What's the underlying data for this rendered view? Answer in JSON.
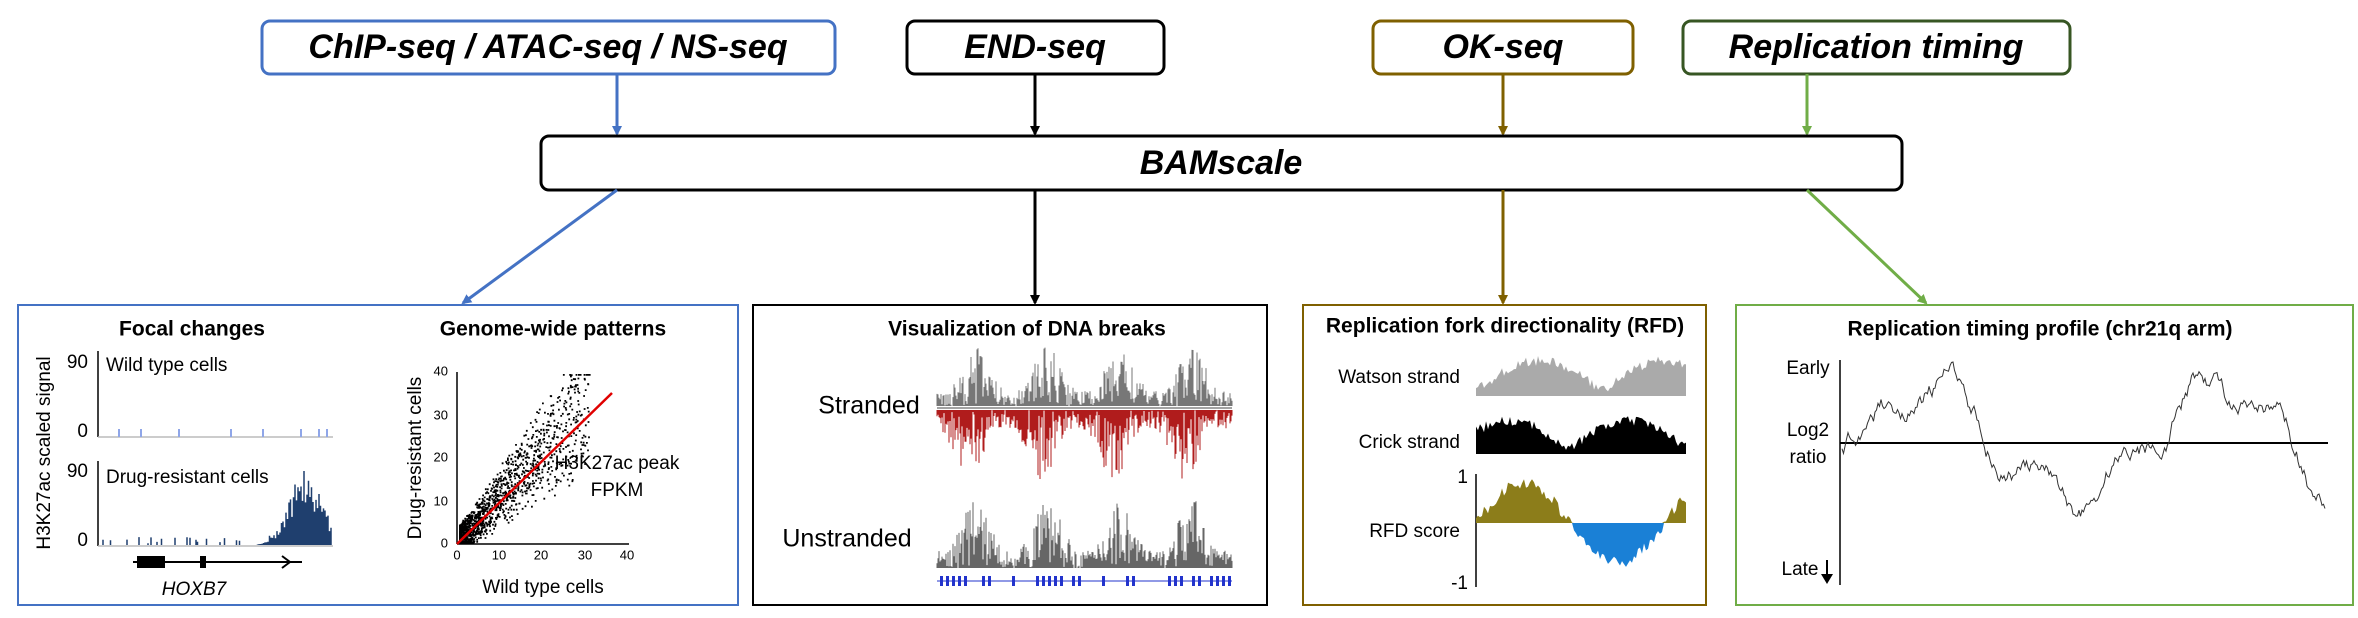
{
  "inputs": [
    {
      "label": "ChIP-seq / ATAC-seq / NS-seq"
    },
    {
      "label": "END-seq"
    },
    {
      "label": "OK-seq"
    },
    {
      "label": "Replication timing"
    }
  ],
  "tool": {
    "label": "BAMscale"
  },
  "panels": {
    "focal": {
      "title": "Focal changes",
      "y_label": "H3K27ac scaled signal",
      "tracks": [
        {
          "label": "Wild type cells",
          "max": "90",
          "min": "0"
        },
        {
          "label": "Drug-resistant cells",
          "max": "90",
          "min": "0"
        }
      ],
      "gene": "HOXB7"
    },
    "genome": {
      "title": "Genome-wide patterns",
      "x_label": "Wild type cells",
      "y_label": "Drug-resistant cells",
      "xticks": [
        "0",
        "10",
        "20",
        "30",
        "40"
      ],
      "yticks": [
        "0",
        "10",
        "20",
        "30",
        "40"
      ],
      "annotation": [
        "H3K27ac peak",
        "FPKM"
      ]
    },
    "breaks": {
      "title": "Visualization of DNA breaks",
      "tracks": [
        "Stranded",
        "Unstranded"
      ]
    },
    "rfd": {
      "title": "Replication fork directionality (RFD)",
      "tracks": [
        "Watson strand",
        "Crick strand",
        "RFD score"
      ],
      "max": "1",
      "min": "-1"
    },
    "timing": {
      "title": "Replication timing profile (chr21q arm)",
      "top": "Early",
      "middle": [
        "Log2",
        "ratio"
      ],
      "bottom": "Late"
    }
  }
}
